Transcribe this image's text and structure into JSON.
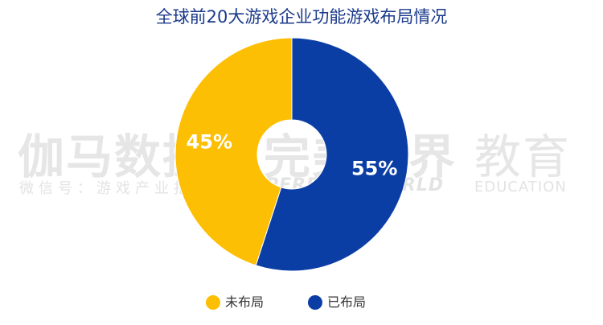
{
  "chart_data": {
    "type": "pie",
    "title": "全球前20大游戏企业功能游戏布局情况",
    "categories": [
      "未布局",
      "已布局"
    ],
    "values": [
      45,
      55
    ],
    "labels": [
      "45%",
      "55%"
    ],
    "colors": [
      "#fdbf03",
      "#0b3ea5"
    ],
    "legend_position": "bottom"
  },
  "watermark": {
    "brand_left": "伽马数据",
    "brand_left_sub": "微信号：游戏产业报告",
    "brand_mid": "完美世界",
    "brand_mid_sub": "PERFECT WORLD",
    "brand_right": "教育",
    "brand_right_sub": "EDUCATION"
  }
}
